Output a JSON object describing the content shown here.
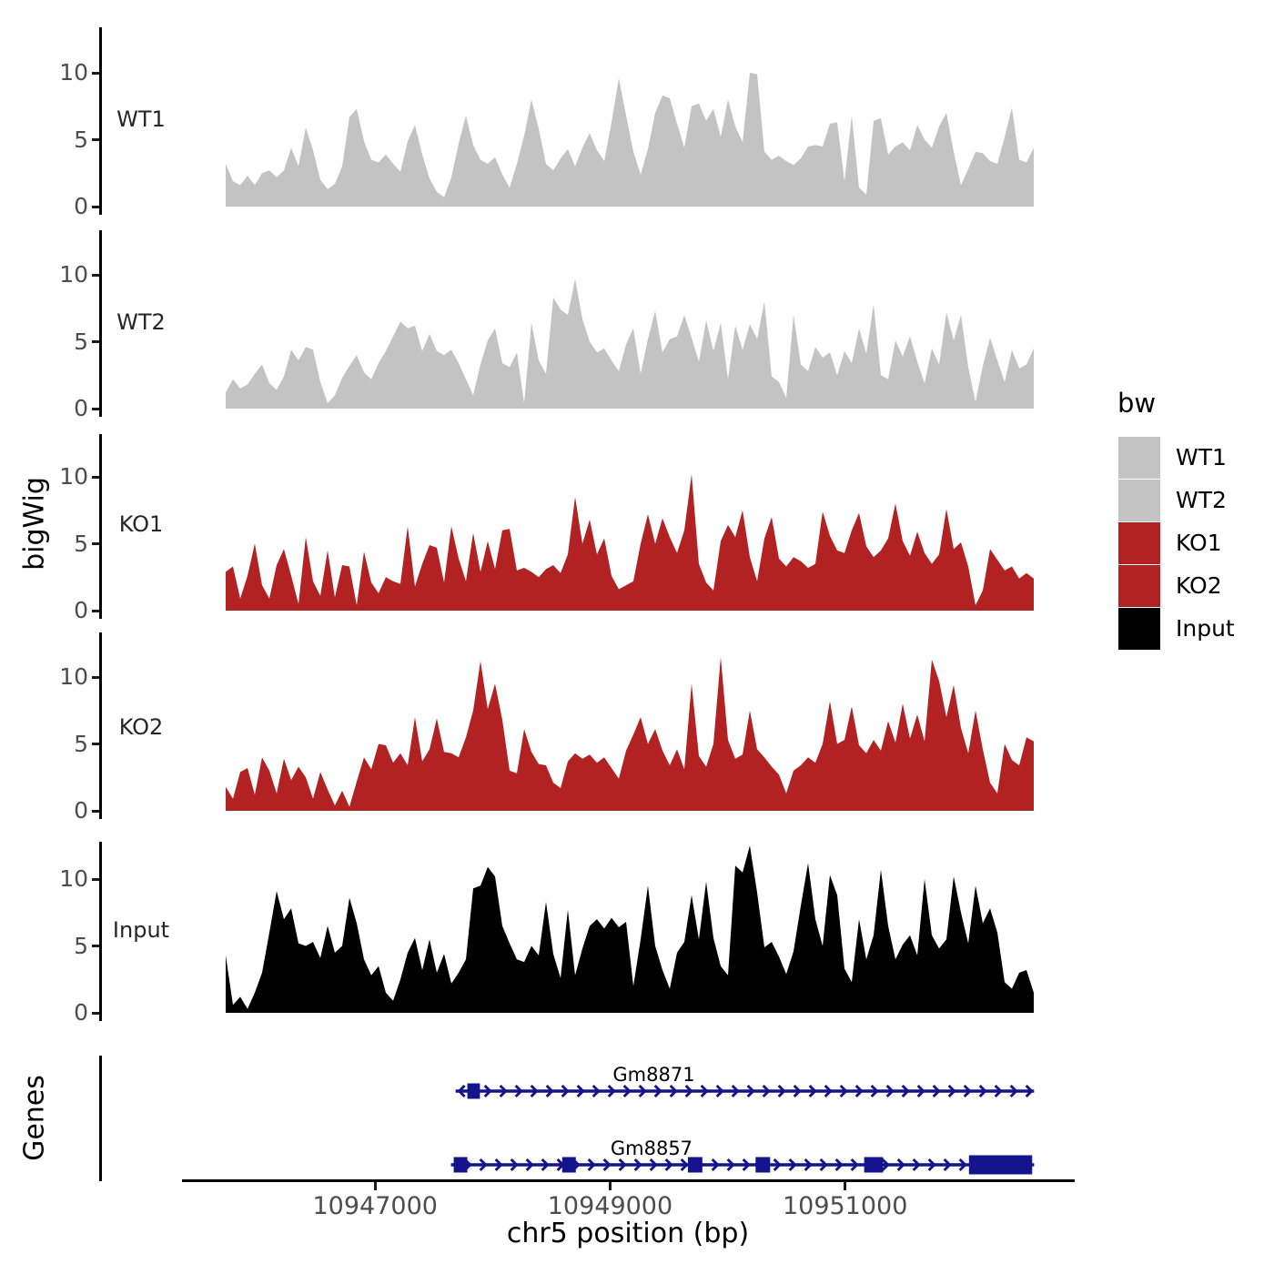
{
  "chart_data": {
    "type": "area",
    "description": "Genome browser style coverage tracks (bigWig) with gene models",
    "xlabel": "chr5 position (bp)",
    "ylabel_left": "bigWig",
    "genes_axis_label": "Genes",
    "x_axis_ticks": [
      {
        "label": "10947000",
        "bp": 10947000
      },
      {
        "label": "10949000",
        "bp": 10949000
      },
      {
        "label": "10951000",
        "bp": 10951000
      }
    ],
    "x_domain_bp": [
      10945750,
      10952600
    ],
    "y_ticks": [
      0,
      5,
      10
    ],
    "ylim_per_track": [
      0,
      13
    ],
    "legend": {
      "title": "bw",
      "entries": [
        {
          "label": "WT1",
          "color": "#c3c3c3"
        },
        {
          "label": "WT2",
          "color": "#c3c3c3"
        },
        {
          "label": "KO1",
          "color": "#b22222"
        },
        {
          "label": "KO2",
          "color": "#b22222"
        },
        {
          "label": "Input",
          "color": "#000000"
        }
      ]
    },
    "tracks": [
      {
        "name": "WT1",
        "color": "#c3c3c3",
        "values": [
          3.2,
          1.9,
          1.6,
          2.3,
          1.6,
          2.5,
          2.7,
          2.2,
          2.7,
          4.4,
          3.0,
          5.9,
          4.2,
          2.0,
          1.3,
          1.7,
          3.0,
          6.7,
          7.3,
          4.9,
          3.5,
          3.3,
          3.9,
          3.2,
          2.6,
          4.9,
          6.1,
          3.9,
          2.1,
          1.1,
          0.7,
          2.2,
          4.7,
          6.8,
          4.6,
          3.5,
          3.2,
          3.7,
          2.4,
          1.4,
          3.2,
          5.3,
          8.0,
          5.8,
          3.2,
          2.7,
          3.6,
          4.3,
          3.0,
          4.4,
          5.5,
          4.2,
          3.4,
          6.3,
          9.6,
          6.8,
          4.1,
          2.4,
          4.3,
          7.0,
          8.3,
          8.1,
          6.2,
          4.4,
          7.5,
          7.7,
          6.4,
          7.3,
          5.2,
          8.0,
          6.0,
          4.8,
          10.0,
          9.9,
          4.1,
          3.5,
          3.8,
          3.4,
          3.1,
          3.6,
          4.5,
          4.6,
          4.5,
          6.2,
          6.3,
          1.9,
          6.8,
          1.4,
          0.9,
          6.4,
          6.6,
          3.9,
          4.5,
          4.8,
          4.2,
          6.1,
          5.0,
          4.4,
          6.0,
          7.0,
          4.1,
          1.6,
          2.8,
          4.1,
          4.0,
          3.4,
          3.2,
          5.2,
          7.4,
          3.5,
          3.3,
          4.4
        ]
      },
      {
        "name": "WT2",
        "color": "#c3c3c3",
        "values": [
          1.2,
          2.2,
          1.5,
          1.8,
          2.6,
          3.3,
          1.9,
          1.4,
          2.4,
          4.4,
          3.6,
          4.6,
          4.4,
          2.0,
          0.4,
          1.0,
          2.3,
          3.2,
          4.0,
          2.7,
          2.2,
          3.4,
          4.3,
          5.4,
          6.5,
          6.0,
          6.2,
          4.3,
          5.6,
          4.3,
          4.0,
          4.4,
          3.4,
          2.2,
          1.0,
          3.3,
          5.1,
          6.0,
          3.4,
          3.1,
          4.2,
          0.4,
          6.4,
          3.6,
          2.6,
          8.3,
          7.4,
          7.0,
          9.7,
          6.7,
          5.0,
          4.2,
          4.5,
          3.6,
          2.8,
          4.8,
          6.0,
          2.6,
          5.2,
          7.3,
          4.2,
          5.2,
          5.4,
          7.0,
          5.3,
          3.5,
          6.6,
          4.3,
          6.4,
          2.2,
          6.2,
          4.4,
          6.3,
          5.2,
          8.0,
          2.4,
          2.0,
          0.8,
          7.0,
          3.3,
          2.8,
          4.6,
          3.8,
          4.2,
          2.5,
          4.3,
          3.4,
          6.0,
          4.1,
          7.8,
          2.5,
          2.2,
          5.1,
          3.9,
          5.4,
          3.5,
          1.9,
          4.5,
          3.3,
          7.2,
          5.1,
          7.0,
          3.1,
          0.5,
          3.2,
          5.3,
          3.6,
          2.0,
          4.4,
          3.0,
          3.3,
          4.5
        ]
      },
      {
        "name": "KO1",
        "color": "#b22222",
        "values": [
          2.9,
          3.3,
          0.9,
          2.6,
          5.0,
          1.9,
          0.9,
          3.4,
          4.6,
          2.6,
          0.5,
          5.5,
          2.2,
          1.1,
          4.5,
          1.0,
          3.4,
          3.3,
          0.4,
          4.4,
          2.1,
          1.3,
          2.5,
          2.2,
          2.0,
          6.3,
          1.8,
          3.5,
          4.9,
          4.7,
          2.1,
          6.3,
          3.9,
          2.2,
          5.8,
          2.9,
          5.2,
          3.1,
          6.0,
          6.1,
          3.0,
          3.2,
          2.9,
          2.5,
          3.1,
          3.4,
          2.8,
          4.2,
          8.5,
          5.0,
          6.8,
          4.2,
          5.4,
          2.6,
          1.6,
          1.9,
          2.2,
          5.0,
          7.2,
          5.0,
          6.9,
          5.5,
          4.3,
          6.0,
          10.2,
          3.5,
          2.1,
          1.5,
          5.2,
          6.4,
          5.5,
          7.5,
          4.0,
          2.2,
          5.4,
          7.0,
          3.9,
          3.3,
          4.0,
          3.7,
          3.2,
          3.5,
          7.4,
          5.6,
          4.5,
          4.3,
          6.0,
          7.3,
          4.8,
          4.0,
          4.5,
          5.4,
          8.0,
          5.2,
          4.1,
          5.9,
          4.3,
          3.5,
          4.2,
          7.6,
          4.6,
          5.1,
          3.3,
          0.4,
          1.5,
          4.6,
          3.8,
          3.0,
          3.3,
          2.4,
          2.8,
          2.4
        ]
      },
      {
        "name": "KO2",
        "color": "#b22222",
        "values": [
          1.8,
          0.9,
          2.9,
          3.2,
          1.2,
          4.0,
          3.0,
          1.3,
          3.9,
          2.3,
          3.3,
          2.5,
          0.9,
          2.9,
          1.6,
          0.4,
          1.5,
          0.3,
          2.2,
          4.0,
          3.1,
          5.0,
          4.9,
          3.6,
          4.3,
          3.4,
          7.0,
          3.7,
          4.6,
          6.9,
          4.4,
          4.3,
          4.0,
          5.5,
          7.5,
          11.2,
          7.6,
          9.5,
          6.8,
          3.0,
          2.8,
          6.1,
          4.4,
          3.5,
          3.4,
          2.1,
          1.7,
          3.7,
          4.3,
          3.9,
          4.2,
          3.6,
          4.0,
          3.2,
          2.4,
          4.5,
          5.7,
          7.0,
          5.0,
          6.1,
          4.5,
          3.4,
          4.6,
          3.1,
          9.5,
          4.1,
          3.3,
          5.0,
          11.5,
          5.3,
          3.9,
          4.2,
          7.5,
          4.6,
          4.0,
          3.3,
          2.7,
          1.3,
          3.0,
          3.4,
          4.0,
          3.6,
          5.0,
          8.2,
          5.0,
          5.3,
          7.8,
          4.9,
          4.3,
          5.3,
          4.5,
          6.7,
          5.1,
          8.0,
          5.4,
          7.2,
          5.2,
          11.3,
          9.7,
          7.0,
          9.4,
          6.2,
          4.3,
          7.5,
          4.6,
          2.1,
          1.3,
          5.0,
          3.8,
          3.4,
          5.5,
          5.2
        ]
      },
      {
        "name": "Input",
        "color": "#000000",
        "values": [
          4.3,
          0.6,
          1.2,
          0.3,
          1.5,
          3.0,
          6.0,
          9.1,
          7.0,
          7.8,
          5.2,
          5.0,
          5.3,
          4.1,
          6.5,
          4.5,
          5.0,
          8.6,
          6.7,
          4.0,
          2.8,
          3.5,
          1.5,
          0.9,
          2.5,
          4.5,
          5.6,
          3.2,
          5.5,
          3.0,
          4.4,
          2.2,
          3.0,
          4.0,
          9.3,
          9.5,
          10.9,
          10.2,
          6.5,
          5.2,
          4.0,
          3.8,
          5.0,
          4.3,
          8.3,
          4.4,
          2.6,
          7.7,
          2.8,
          4.8,
          6.5,
          7.0,
          6.3,
          7.1,
          6.4,
          6.8,
          2.0,
          5.5,
          9.5,
          5.0,
          3.2,
          1.8,
          4.5,
          5.3,
          8.8,
          5.5,
          9.8,
          5.6,
          3.5,
          2.8,
          11.0,
          10.5,
          12.5,
          9.0,
          4.9,
          5.3,
          4.2,
          2.9,
          4.6,
          8.0,
          11.2,
          7.0,
          5.0,
          10.3,
          8.8,
          3.3,
          2.3,
          7.0,
          4.0,
          5.8,
          10.7,
          6.5,
          4.0,
          5.1,
          5.8,
          4.3,
          10.0,
          5.8,
          4.8,
          5.5,
          10.2,
          7.5,
          5.2,
          9.5,
          6.7,
          7.8,
          6.0,
          2.3,
          1.8,
          3.0,
          3.2,
          1.5
        ]
      }
    ],
    "genes": [
      {
        "name": "Gm8871",
        "strand": "+",
        "start_bp": 10947685,
        "end_bp": 10952608,
        "color": "#14148c",
        "exons_bp": [
          [
            10947785,
            10947892
          ]
        ],
        "thick_exon_index": -1
      },
      {
        "name": "Gm8857",
        "strand": "+",
        "start_bp": 10947646,
        "end_bp": 10952608,
        "color": "#14148c",
        "exons_bp": [
          [
            10947669,
            10947785
          ],
          [
            10948592,
            10948708
          ],
          [
            10949662,
            10949785
          ],
          [
            10950238,
            10950362
          ],
          [
            10951162,
            10951323
          ],
          [
            10952054,
            10952592
          ]
        ],
        "thick_exon_index": 5
      }
    ]
  }
}
